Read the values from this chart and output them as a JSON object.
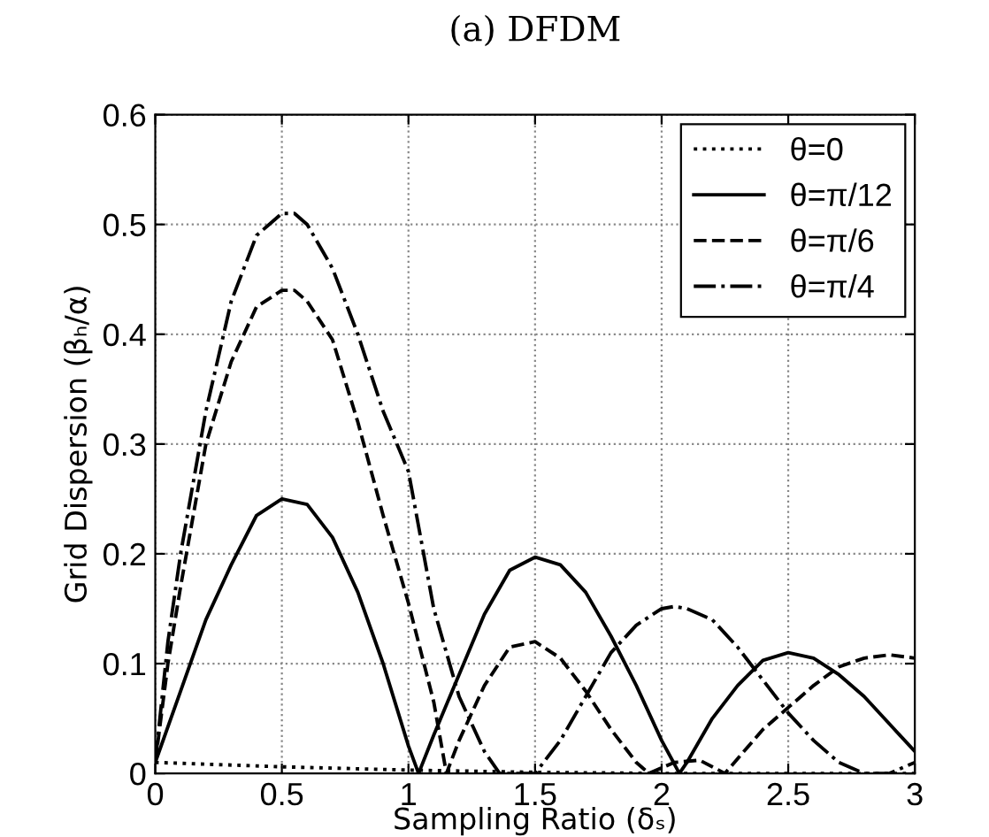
{
  "chart_data": {
    "type": "line",
    "title": "(a) DFDM",
    "xlabel": "Sampling Ratio (δₛ)",
    "ylabel": "Grid Dispersion (βₕ/α)",
    "xlim": [
      0,
      3
    ],
    "ylim": [
      0,
      0.6
    ],
    "xticks": [
      0,
      0.5,
      1,
      1.5,
      2,
      2.5,
      3
    ],
    "yticks": [
      0,
      0.1,
      0.2,
      0.3,
      0.4,
      0.5,
      0.6
    ],
    "grid": true,
    "legend": "top right",
    "series": [
      {
        "name": "θ=0",
        "color": "#000000",
        "line_style": "dotted",
        "x": [
          0,
          0.5,
          1,
          1.5,
          2,
          3
        ],
        "values": [
          0.01,
          0.006,
          0.003,
          0.001,
          0,
          0
        ]
      },
      {
        "name": "θ=π/12",
        "color": "#000000",
        "line_style": "solid",
        "x": [
          0,
          0.1,
          0.2,
          0.3,
          0.4,
          0.5,
          0.6,
          0.7,
          0.8,
          0.9,
          1.0,
          1.04,
          1.1,
          1.2,
          1.3,
          1.4,
          1.5,
          1.6,
          1.7,
          1.8,
          1.9,
          2.0,
          2.07,
          2.1,
          2.2,
          2.3,
          2.4,
          2.5,
          2.6,
          2.7,
          2.8,
          2.9,
          3.0
        ],
        "values": [
          0.01,
          0.075,
          0.14,
          0.19,
          0.235,
          0.25,
          0.245,
          0.215,
          0.165,
          0.1,
          0.025,
          0,
          0.035,
          0.09,
          0.145,
          0.185,
          0.197,
          0.19,
          0.165,
          0.125,
          0.08,
          0.03,
          0,
          0.01,
          0.05,
          0.08,
          0.103,
          0.11,
          0.105,
          0.09,
          0.07,
          0.045,
          0.02
        ]
      },
      {
        "name": "θ=π/6",
        "color": "#000000",
        "line_style": "dashed",
        "x": [
          0,
          0.05,
          0.1,
          0.2,
          0.3,
          0.4,
          0.5,
          0.55,
          0.6,
          0.7,
          0.8,
          0.9,
          1.0,
          1.1,
          1.15,
          1.2,
          1.3,
          1.4,
          1.5,
          1.6,
          1.7,
          1.8,
          1.9,
          1.95,
          2.05,
          2.15,
          2.25,
          2.4,
          2.5,
          2.6,
          2.7,
          2.8,
          2.9,
          3.0
        ],
        "values": [
          0.01,
          0.1,
          0.17,
          0.3,
          0.375,
          0.425,
          0.44,
          0.44,
          0.43,
          0.395,
          0.32,
          0.235,
          0.155,
          0.065,
          0,
          0.03,
          0.08,
          0.115,
          0.12,
          0.105,
          0.075,
          0.04,
          0.01,
          0,
          0.01,
          0.012,
          0,
          0.04,
          0.06,
          0.08,
          0.097,
          0.105,
          0.108,
          0.105
        ]
      },
      {
        "name": "θ=π/4",
        "color": "#000000",
        "line_style": "dashdot",
        "x": [
          0,
          0.05,
          0.1,
          0.2,
          0.3,
          0.4,
          0.5,
          0.55,
          0.6,
          0.7,
          0.8,
          0.9,
          1.0,
          1.1,
          1.2,
          1.3,
          1.36,
          1.5,
          1.6,
          1.7,
          1.8,
          1.9,
          2.0,
          2.05,
          2.1,
          2.2,
          2.3,
          2.4,
          2.5,
          2.6,
          2.7,
          2.8,
          2.9,
          3.0
        ],
        "values": [
          0.01,
          0.12,
          0.2,
          0.33,
          0.43,
          0.49,
          0.51,
          0.51,
          0.5,
          0.46,
          0.4,
          0.33,
          0.275,
          0.15,
          0.07,
          0.02,
          0,
          0,
          0.03,
          0.07,
          0.11,
          0.135,
          0.15,
          0.152,
          0.15,
          0.14,
          0.115,
          0.085,
          0.055,
          0.03,
          0.01,
          0,
          0,
          0.01
        ]
      }
    ]
  }
}
